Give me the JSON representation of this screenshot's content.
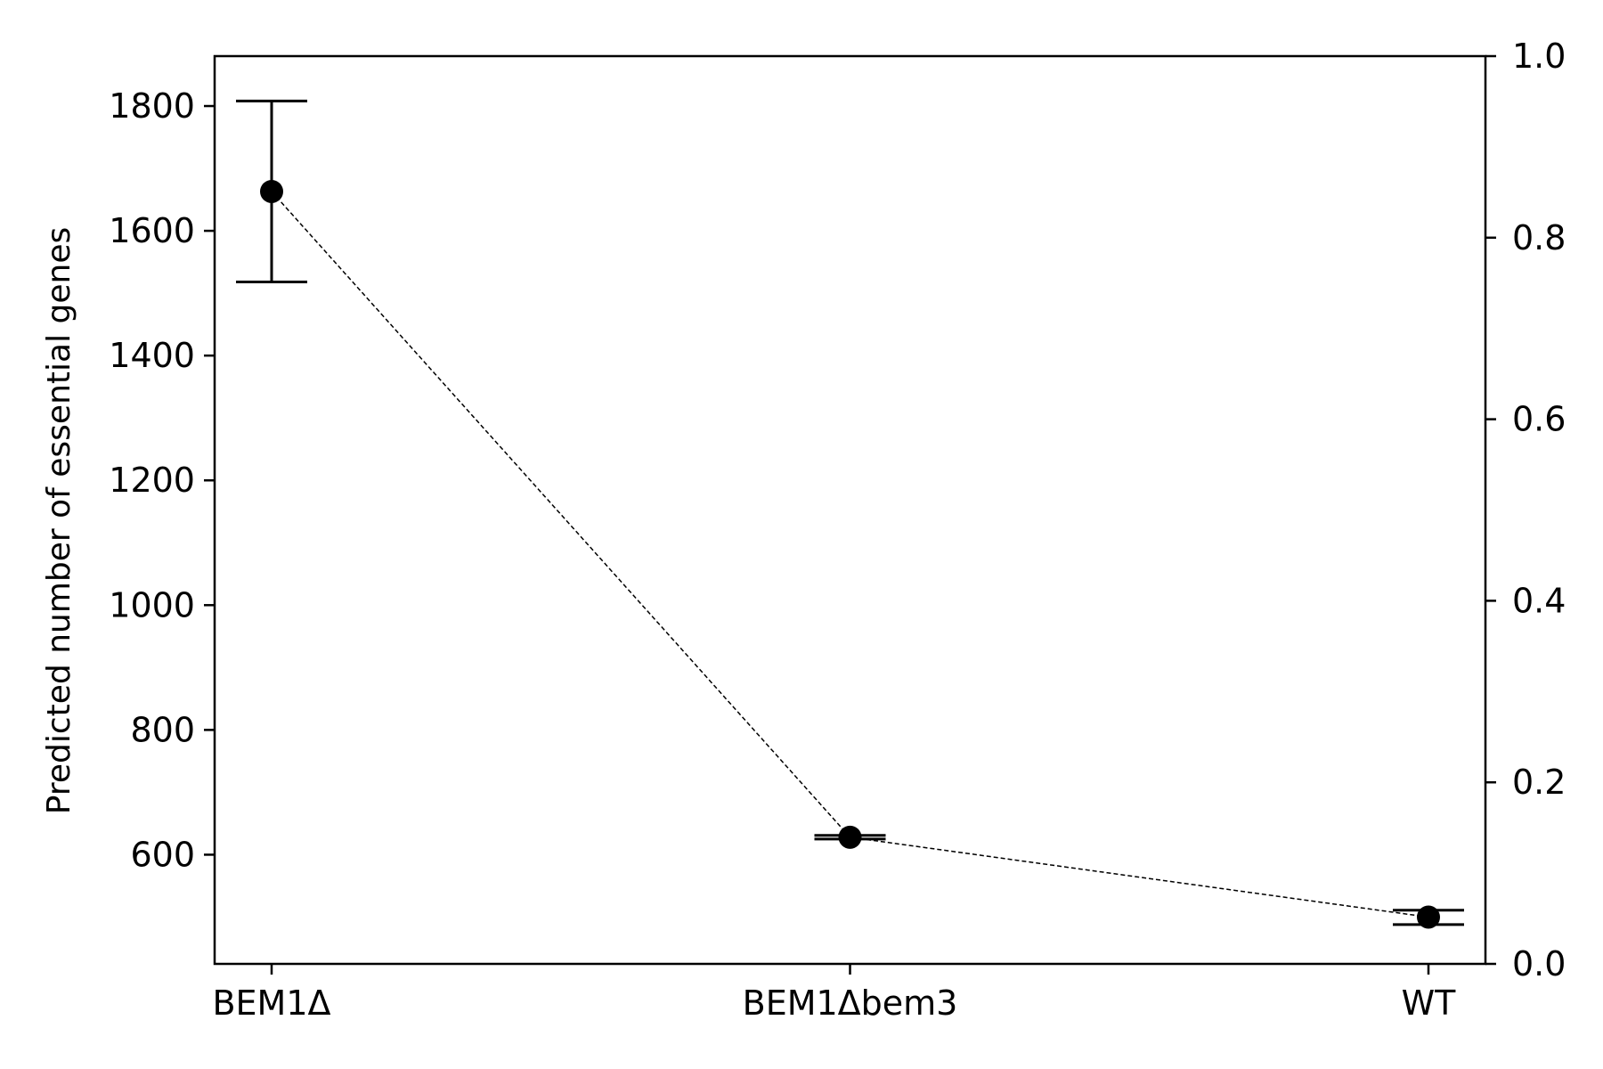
{
  "chart_data": {
    "type": "scatter",
    "categories": [
      "BEM1Δ",
      "BEM1Δbem3",
      "WT"
    ],
    "series": [
      {
        "values": [
          1663,
          628,
          500
        ],
        "err_low": [
          1518,
          625,
          488
        ],
        "err_high": [
          1808,
          631,
          511
        ],
        "marker": "circle",
        "connector": "dashed"
      }
    ],
    "ylabel": "Predicted number of essential genes",
    "xlabel": "",
    "title": "",
    "ylim": [
      425,
      1880
    ],
    "yticks": [
      600,
      800,
      1000,
      1200,
      1400,
      1600,
      1800
    ],
    "ylim_right": [
      0.0,
      1.0
    ],
    "yticks_right": [
      "0.0",
      "0.2",
      "0.4",
      "0.6",
      "0.8",
      "1.0"
    ],
    "grid": false,
    "legend": "none",
    "colors": {
      "marker": "#000000",
      "axis": "#000000",
      "connector": "#000000"
    }
  }
}
